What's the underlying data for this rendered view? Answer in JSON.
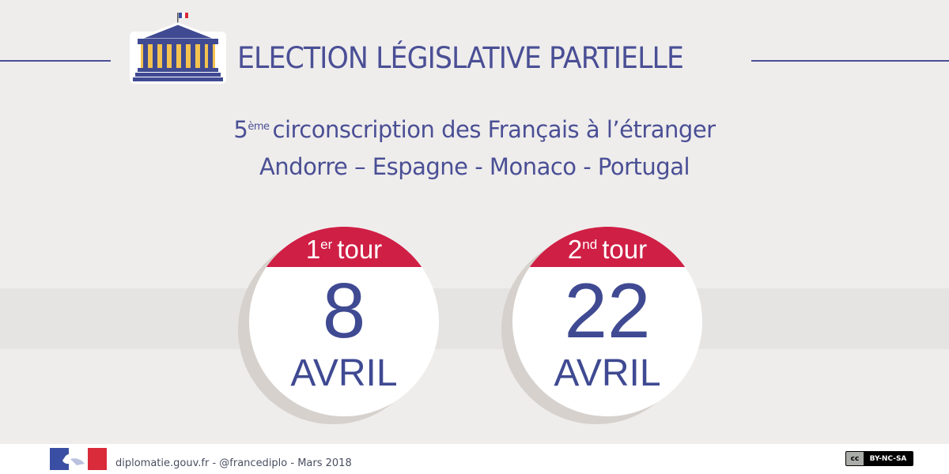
{
  "header": {
    "title": "ELECTION LÉGISLATIVE PARTIELLE",
    "icon": "parliament-building-icon",
    "rule_color": "#4a4f95"
  },
  "district": {
    "number": "5",
    "ordinal_suffix": "ème",
    "line1_text": "circonscription des Français à l’étranger",
    "line2": "Andorre – Espagne - Monaco - Portugal"
  },
  "rounds": [
    {
      "ordinal": "1",
      "suffix": "er",
      "label": "tour",
      "day": "8",
      "month": "AVRIL"
    },
    {
      "ordinal": "2",
      "suffix": "nd",
      "label": "tour",
      "day": "22",
      "month": "AVRIL"
    }
  ],
  "footer": {
    "credit": "diplomatie.gouv.fr - @francediplo - Mars 2018",
    "logo": "marianne-logo",
    "license": "BY-NC-SA",
    "license_mark": "cc"
  },
  "colors": {
    "navy": "#3f4a92",
    "red": "#cf1f45",
    "background": "#efedec"
  }
}
